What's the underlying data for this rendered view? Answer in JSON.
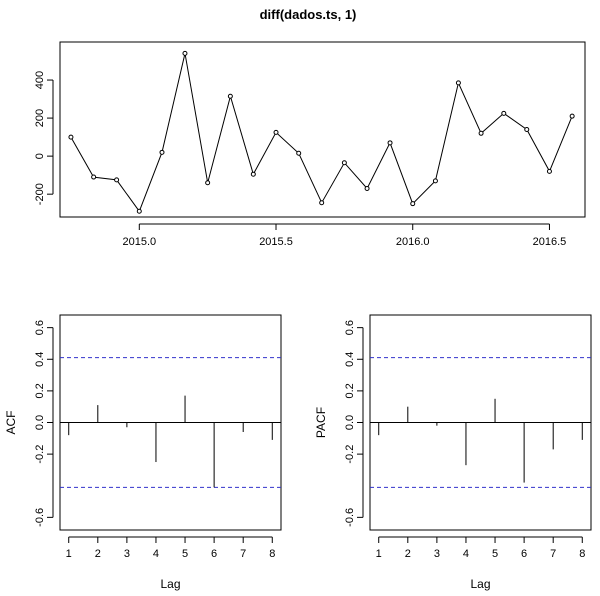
{
  "chart_data": [
    {
      "type": "line",
      "title": "diff(dados.ts, 1)",
      "xlabel": "",
      "ylabel": "",
      "xlim": [
        2014.71,
        2016.63
      ],
      "ylim": [
        -320,
        600
      ],
      "xticks": [
        2015.0,
        2015.5,
        2016.0,
        2016.5
      ],
      "xtick_labels": [
        "2015.0",
        "2015.5",
        "2016.0",
        "2016.5"
      ],
      "yticks": [
        -200,
        0,
        200,
        400
      ],
      "ytick_labels": [
        "-200",
        "0",
        "200",
        "400"
      ],
      "markers": "open-circle",
      "grid": false,
      "x": [
        2014.75,
        2014.833,
        2014.917,
        2015.0,
        2015.083,
        2015.167,
        2015.25,
        2015.333,
        2015.417,
        2015.5,
        2015.583,
        2015.667,
        2015.75,
        2015.833,
        2015.917,
        2016.0,
        2016.083,
        2016.167,
        2016.25,
        2016.333,
        2016.417,
        2016.5,
        2016.583
      ],
      "values": [
        100,
        -110,
        -125,
        -290,
        20,
        540,
        -140,
        315,
        -95,
        125,
        15,
        -245,
        -35,
        -170,
        70,
        -250,
        -130,
        385,
        120,
        225,
        140,
        -80,
        210
      ]
    },
    {
      "type": "bar",
      "style": "spike",
      "xlabel": "Lag",
      "ylabel": "ACF",
      "categories": [
        "1",
        "2",
        "3",
        "4",
        "5",
        "6",
        "7",
        "8"
      ],
      "values": [
        -0.08,
        0.11,
        -0.03,
        -0.25,
        0.17,
        -0.41,
        -0.06,
        -0.11
      ],
      "confidence_bounds": [
        0.41,
        -0.41
      ],
      "xlim": [
        0.7,
        8.3
      ],
      "ylim": [
        -0.68,
        0.68
      ],
      "yticks": [
        -0.6,
        -0.2,
        0.0,
        0.2,
        0.4,
        0.6
      ],
      "ytick_labels": [
        "-0.6",
        "-0.2",
        "0.0",
        "0.2",
        "0.4",
        "0.6"
      ],
      "colors": {
        "bounds": "#3333cc"
      }
    },
    {
      "type": "bar",
      "style": "spike",
      "xlabel": "Lag",
      "ylabel": "PACF",
      "categories": [
        "1",
        "2",
        "3",
        "4",
        "5",
        "6",
        "7",
        "8"
      ],
      "values": [
        -0.08,
        0.1,
        -0.02,
        -0.27,
        0.15,
        -0.38,
        -0.17,
        -0.11
      ],
      "confidence_bounds": [
        0.41,
        -0.41
      ],
      "xlim": [
        0.7,
        8.3
      ],
      "ylim": [
        -0.68,
        0.68
      ],
      "yticks": [
        -0.6,
        -0.2,
        0.0,
        0.2,
        0.4,
        0.6
      ],
      "ytick_labels": [
        "-0.6",
        "-0.2",
        "0.0",
        "0.2",
        "0.4",
        "0.6"
      ],
      "colors": {
        "bounds": "#3333cc"
      }
    }
  ]
}
